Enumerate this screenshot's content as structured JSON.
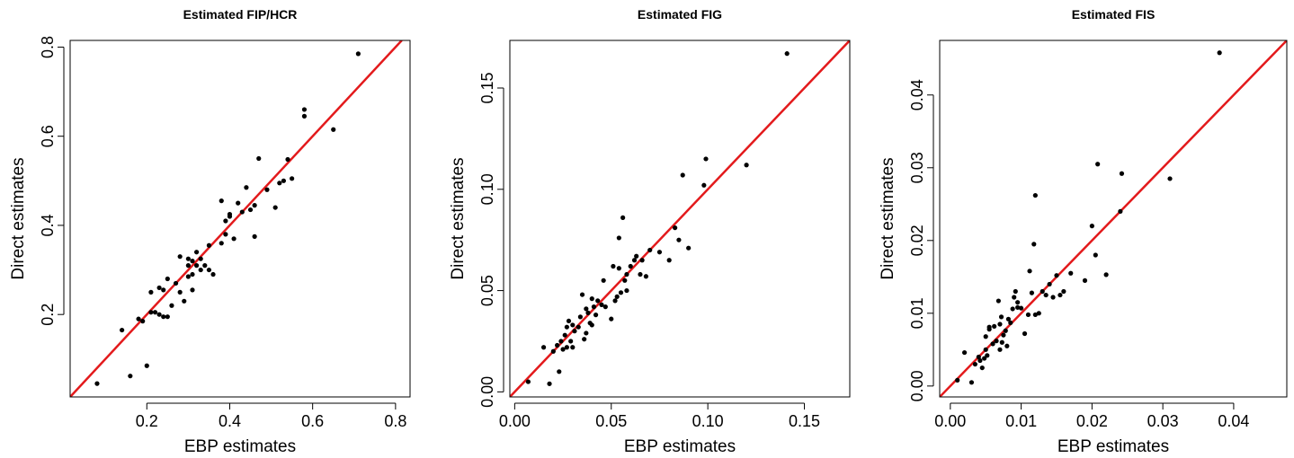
{
  "chart_data": [
    {
      "type": "scatter",
      "title": "Estimated FIP/HCR",
      "xlabel": "EBP estimates",
      "ylabel": "Direct estimates",
      "xlim": [
        0.015,
        0.835
      ],
      "ylim": [
        0.015,
        0.815
      ],
      "xticks": [
        0.2,
        0.4,
        0.6,
        0.8
      ],
      "xtick_labels": [
        "0.2",
        "0.4",
        "0.6",
        "0.8"
      ],
      "yticks": [
        0.2,
        0.4,
        0.6,
        0.8
      ],
      "ytick_labels": [
        "0.2",
        "0.4",
        "0.6",
        "0.8"
      ],
      "reference_line": "y = x",
      "point_color": "#000000",
      "line_color": "#e31a1c",
      "points": [
        [
          0.08,
          0.045
        ],
        [
          0.14,
          0.165
        ],
        [
          0.16,
          0.062
        ],
        [
          0.2,
          0.085
        ],
        [
          0.18,
          0.19
        ],
        [
          0.19,
          0.185
        ],
        [
          0.21,
          0.25
        ],
        [
          0.21,
          0.205
        ],
        [
          0.22,
          0.205
        ],
        [
          0.23,
          0.2
        ],
        [
          0.23,
          0.26
        ],
        [
          0.24,
          0.255
        ],
        [
          0.24,
          0.195
        ],
        [
          0.25,
          0.28
        ],
        [
          0.25,
          0.195
        ],
        [
          0.26,
          0.22
        ],
        [
          0.27,
          0.27
        ],
        [
          0.28,
          0.33
        ],
        [
          0.28,
          0.25
        ],
        [
          0.29,
          0.23
        ],
        [
          0.3,
          0.285
        ],
        [
          0.3,
          0.31
        ],
        [
          0.3,
          0.325
        ],
        [
          0.31,
          0.32
        ],
        [
          0.31,
          0.255
        ],
        [
          0.31,
          0.29
        ],
        [
          0.32,
          0.34
        ],
        [
          0.32,
          0.31
        ],
        [
          0.33,
          0.3
        ],
        [
          0.33,
          0.325
        ],
        [
          0.34,
          0.31
        ],
        [
          0.35,
          0.355
        ],
        [
          0.35,
          0.3
        ],
        [
          0.36,
          0.29
        ],
        [
          0.38,
          0.36
        ],
        [
          0.38,
          0.455
        ],
        [
          0.39,
          0.38
        ],
        [
          0.39,
          0.41
        ],
        [
          0.4,
          0.42
        ],
        [
          0.4,
          0.425
        ],
        [
          0.41,
          0.37
        ],
        [
          0.42,
          0.45
        ],
        [
          0.43,
          0.43
        ],
        [
          0.44,
          0.485
        ],
        [
          0.45,
          0.435
        ],
        [
          0.46,
          0.445
        ],
        [
          0.46,
          0.375
        ],
        [
          0.47,
          0.55
        ],
        [
          0.49,
          0.48
        ],
        [
          0.51,
          0.44
        ],
        [
          0.52,
          0.495
        ],
        [
          0.53,
          0.5
        ],
        [
          0.54,
          0.548
        ],
        [
          0.55,
          0.505
        ],
        [
          0.58,
          0.645
        ],
        [
          0.58,
          0.66
        ],
        [
          0.65,
          0.615
        ],
        [
          0.71,
          0.785
        ]
      ]
    },
    {
      "type": "scatter",
      "title": "Estimated FIG",
      "xlabel": "EBP estimates",
      "ylabel": "Direct estimates",
      "xlim": [
        -0.0025,
        0.1735
      ],
      "ylim": [
        -0.0025,
        0.1735
      ],
      "xticks": [
        0.0,
        0.05,
        0.1,
        0.15
      ],
      "xtick_labels": [
        "0.00",
        "0.05",
        "0.10",
        "0.15"
      ],
      "yticks": [
        0.0,
        0.05,
        0.1,
        0.15
      ],
      "ytick_labels": [
        "0.00",
        "0.05",
        "0.10",
        "0.15"
      ],
      "reference_line": "y = x",
      "point_color": "#000000",
      "line_color": "#e31a1c",
      "points": [
        [
          0.007,
          0.005
        ],
        [
          0.015,
          0.022
        ],
        [
          0.018,
          0.004
        ],
        [
          0.02,
          0.02
        ],
        [
          0.022,
          0.023
        ],
        [
          0.023,
          0.01
        ],
        [
          0.024,
          0.025
        ],
        [
          0.025,
          0.021
        ],
        [
          0.026,
          0.028
        ],
        [
          0.027,
          0.022
        ],
        [
          0.027,
          0.032
        ],
        [
          0.028,
          0.035
        ],
        [
          0.029,
          0.025
        ],
        [
          0.03,
          0.033
        ],
        [
          0.03,
          0.022
        ],
        [
          0.031,
          0.03
        ],
        [
          0.033,
          0.032
        ],
        [
          0.034,
          0.037
        ],
        [
          0.035,
          0.048
        ],
        [
          0.036,
          0.026
        ],
        [
          0.037,
          0.029
        ],
        [
          0.037,
          0.041
        ],
        [
          0.038,
          0.039
        ],
        [
          0.039,
          0.034
        ],
        [
          0.04,
          0.033
        ],
        [
          0.04,
          0.046
        ],
        [
          0.041,
          0.042
        ],
        [
          0.042,
          0.038
        ],
        [
          0.043,
          0.045
        ],
        [
          0.045,
          0.043
        ],
        [
          0.046,
          0.055
        ],
        [
          0.047,
          0.042
        ],
        [
          0.05,
          0.036
        ],
        [
          0.051,
          0.062
        ],
        [
          0.052,
          0.045
        ],
        [
          0.053,
          0.047
        ],
        [
          0.054,
          0.061
        ],
        [
          0.054,
          0.076
        ],
        [
          0.055,
          0.049
        ],
        [
          0.056,
          0.086
        ],
        [
          0.057,
          0.055
        ],
        [
          0.058,
          0.05
        ],
        [
          0.058,
          0.058
        ],
        [
          0.06,
          0.062
        ],
        [
          0.062,
          0.065
        ],
        [
          0.063,
          0.067
        ],
        [
          0.065,
          0.058
        ],
        [
          0.066,
          0.065
        ],
        [
          0.068,
          0.057
        ],
        [
          0.07,
          0.07
        ],
        [
          0.075,
          0.069
        ],
        [
          0.08,
          0.065
        ],
        [
          0.083,
          0.081
        ],
        [
          0.085,
          0.075
        ],
        [
          0.087,
          0.107
        ],
        [
          0.09,
          0.071
        ],
        [
          0.098,
          0.102
        ],
        [
          0.099,
          0.115
        ],
        [
          0.12,
          0.112
        ],
        [
          0.141,
          0.167
        ]
      ]
    },
    {
      "type": "scatter",
      "title": "Estimated FIS",
      "xlabel": "EBP estimates",
      "ylabel": "Direct estimates",
      "xlim": [
        -0.0015,
        0.0475
      ],
      "ylim": [
        -0.0015,
        0.0475
      ],
      "xticks": [
        0.0,
        0.01,
        0.02,
        0.03,
        0.04
      ],
      "xtick_labels": [
        "0.00",
        "0.01",
        "0.02",
        "0.03",
        "0.04"
      ],
      "yticks": [
        0.0,
        0.01,
        0.02,
        0.03,
        0.04
      ],
      "ytick_labels": [
        "0.00",
        "0.01",
        "0.02",
        "0.03",
        "0.04"
      ],
      "reference_line": "y = x",
      "point_color": "#000000",
      "line_color": "#e31a1c",
      "points": [
        [
          0.001,
          0.0008
        ],
        [
          0.002,
          0.0046
        ],
        [
          0.003,
          0.0005
        ],
        [
          0.0035,
          0.003
        ],
        [
          0.004,
          0.004
        ],
        [
          0.0042,
          0.0035
        ],
        [
          0.0045,
          0.0025
        ],
        [
          0.0048,
          0.0038
        ],
        [
          0.005,
          0.005
        ],
        [
          0.005,
          0.0068
        ],
        [
          0.0052,
          0.0042
        ],
        [
          0.0055,
          0.0081
        ],
        [
          0.0055,
          0.0078
        ],
        [
          0.006,
          0.0058
        ],
        [
          0.0062,
          0.0082
        ],
        [
          0.0065,
          0.0062
        ],
        [
          0.0068,
          0.0117
        ],
        [
          0.007,
          0.0085
        ],
        [
          0.007,
          0.005
        ],
        [
          0.0072,
          0.0095
        ],
        [
          0.0073,
          0.006
        ],
        [
          0.0075,
          0.007
        ],
        [
          0.0078,
          0.0076
        ],
        [
          0.008,
          0.0055
        ],
        [
          0.0082,
          0.0092
        ],
        [
          0.0085,
          0.0087
        ],
        [
          0.0088,
          0.0106
        ],
        [
          0.009,
          0.0122
        ],
        [
          0.0092,
          0.013
        ],
        [
          0.0095,
          0.0115
        ],
        [
          0.0095,
          0.0108
        ],
        [
          0.01,
          0.0107
        ],
        [
          0.0105,
          0.0072
        ],
        [
          0.011,
          0.0098
        ],
        [
          0.0112,
          0.0158
        ],
        [
          0.0115,
          0.0128
        ],
        [
          0.0118,
          0.0195
        ],
        [
          0.012,
          0.0262
        ],
        [
          0.012,
          0.0098
        ],
        [
          0.0125,
          0.01
        ],
        [
          0.013,
          0.013
        ],
        [
          0.0135,
          0.0125
        ],
        [
          0.014,
          0.014
        ],
        [
          0.0145,
          0.0122
        ],
        [
          0.015,
          0.0152
        ],
        [
          0.0155,
          0.0125
        ],
        [
          0.016,
          0.013
        ],
        [
          0.017,
          0.0155
        ],
        [
          0.019,
          0.0145
        ],
        [
          0.02,
          0.022
        ],
        [
          0.0205,
          0.018
        ],
        [
          0.0208,
          0.0305
        ],
        [
          0.022,
          0.0153
        ],
        [
          0.024,
          0.024
        ],
        [
          0.0242,
          0.0292
        ],
        [
          0.031,
          0.0285
        ],
        [
          0.038,
          0.0458
        ]
      ]
    }
  ]
}
